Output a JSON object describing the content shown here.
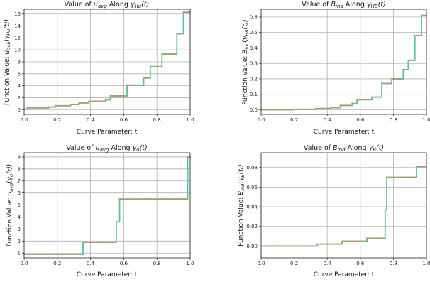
{
  "chart_data": [
    {
      "type": "line",
      "title": "Value of u_avg Along γ_Hu(t)",
      "title_parts": [
        "Value of ",
        "u",
        "avg",
        " Along ",
        "γ",
        "Hu",
        "(t)"
      ],
      "xlabel": "Curve Parameter: t",
      "ylabel_parts": [
        "Function Value: ",
        "u",
        "avg",
        "(",
        "γ",
        "Hu",
        "(t))"
      ],
      "xlim": [
        0,
        1
      ],
      "ylim": [
        -0.8,
        16.8
      ],
      "xticks": [
        0.0,
        0.2,
        0.4,
        0.6,
        0.8,
        1.0
      ],
      "xtick_labels": [
        "0.0",
        "0.2",
        "0.4",
        "0.6",
        "0.8",
        "1.0"
      ],
      "yticks": [
        0,
        2,
        4,
        6,
        8,
        10,
        12,
        14,
        16
      ],
      "ytick_labels": [
        "0",
        "2",
        "4",
        "6",
        "8",
        "10",
        "12",
        "14",
        "16"
      ],
      "grid": true,
      "line_color": "#4fc4a0",
      "marker_color": "#d98a5e",
      "steps": [
        [
          0.0,
          0.1
        ],
        [
          0.02,
          0.3
        ],
        [
          0.15,
          0.45
        ],
        [
          0.19,
          0.65
        ],
        [
          0.28,
          0.85
        ],
        [
          0.33,
          1.1
        ],
        [
          0.39,
          1.4
        ],
        [
          0.49,
          1.65
        ],
        [
          0.52,
          2.3
        ],
        [
          0.62,
          4.1
        ],
        [
          0.72,
          5.3
        ],
        [
          0.76,
          7.2
        ],
        [
          0.83,
          9.3
        ],
        [
          0.92,
          12.7
        ],
        [
          0.96,
          16.3
        ],
        [
          1.0,
          16.3
        ]
      ]
    },
    {
      "type": "line",
      "title": "Value of B_ind Along γ_HB(t)",
      "title_parts": [
        "Value of ",
        "B",
        "ind",
        " Along ",
        "γ",
        "HB",
        "(t)"
      ],
      "xlabel": "Curve Parameter: t",
      "ylabel_parts": [
        "Function Value: ",
        "B",
        "ind",
        "(",
        "γ",
        "HB",
        "(t))"
      ],
      "xlim": [
        0,
        1
      ],
      "ylim": [
        -0.03,
        0.65
      ],
      "xticks": [
        0.0,
        0.2,
        0.4,
        0.6,
        0.8,
        1.0
      ],
      "xtick_labels": [
        "0.0",
        "0.2",
        "0.4",
        "0.6",
        "0.8",
        "1.0"
      ],
      "yticks": [
        0.0,
        0.1,
        0.2,
        0.3,
        0.4,
        0.5,
        0.6
      ],
      "ytick_labels": [
        "0.0",
        "0.1",
        "0.2",
        "0.3",
        "0.4",
        "0.5",
        "0.6"
      ],
      "grid": true,
      "line_color": "#4fc4a0",
      "marker_color": "#d98a5e",
      "steps": [
        [
          0.0,
          0.0
        ],
        [
          0.2,
          0.003
        ],
        [
          0.33,
          0.008
        ],
        [
          0.42,
          0.014
        ],
        [
          0.48,
          0.028
        ],
        [
          0.55,
          0.04
        ],
        [
          0.58,
          0.065
        ],
        [
          0.67,
          0.082
        ],
        [
          0.73,
          0.17
        ],
        [
          0.79,
          0.2
        ],
        [
          0.86,
          0.26
        ],
        [
          0.89,
          0.32
        ],
        [
          0.93,
          0.48
        ],
        [
          0.97,
          0.61
        ],
        [
          1.0,
          0.61
        ]
      ]
    },
    {
      "type": "line",
      "title": "Value of u_avg Along γ_u(t)",
      "title_parts": [
        "Value of ",
        "u",
        "avg",
        " Along ",
        "γ",
        "u",
        "(t)"
      ],
      "xlabel": "Curve Parameter: t",
      "ylabel_parts": [
        "Function Value: ",
        "u",
        "avg",
        "(",
        "γ",
        "u",
        "(t))"
      ],
      "xlim": [
        0,
        1
      ],
      "ylim": [
        0.6,
        9.35
      ],
      "xticks": [
        0.0,
        0.2,
        0.4,
        0.6,
        0.8,
        1.0
      ],
      "xtick_labels": [
        "0.0",
        "0.2",
        "0.4",
        "0.6",
        "0.8",
        "1.0"
      ],
      "yticks": [
        1,
        2,
        3,
        4,
        5,
        6,
        7,
        8,
        9
      ],
      "ytick_labels": [
        "1",
        "2",
        "3",
        "4",
        "5",
        "6",
        "7",
        "8",
        "9"
      ],
      "grid": true,
      "line_color": "#4fc4a0",
      "marker_color": "#d98a5e",
      "steps": [
        [
          0.0,
          0.9
        ],
        [
          0.355,
          1.9
        ],
        [
          0.555,
          3.6
        ],
        [
          0.575,
          5.5
        ],
        [
          0.985,
          9.0
        ],
        [
          1.0,
          9.0
        ]
      ]
    },
    {
      "type": "line",
      "title": "Value of B_ind Along γ_B(t)",
      "title_parts": [
        "Value of ",
        "B",
        "ind",
        " Along ",
        "γ",
        "B",
        "(t)"
      ],
      "xlabel": "Curve Parameter: t",
      "ylabel_parts": [
        "Function Value: ",
        "B",
        "ind",
        "(",
        "γ",
        "B",
        "(t))"
      ],
      "xlim": [
        0,
        1
      ],
      "ylim": [
        -0.012,
        0.095
      ],
      "xticks": [
        0.0,
        0.2,
        0.4,
        0.6,
        0.8,
        1.0
      ],
      "xtick_labels": [
        "0.0",
        "0.2",
        "0.4",
        "0.6",
        "0.8",
        "1.0"
      ],
      "yticks": [
        0.0,
        0.02,
        0.04,
        0.06,
        0.08
      ],
      "ytick_labels": [
        "0.00",
        "0.02",
        "0.04",
        "0.06",
        "0.08"
      ],
      "grid": true,
      "line_color": "#4fc4a0",
      "marker_color": "#d98a5e",
      "steps": [
        [
          0.0,
          0.0
        ],
        [
          0.34,
          0.002
        ],
        [
          0.49,
          0.005
        ],
        [
          0.64,
          0.008
        ],
        [
          0.75,
          0.037
        ],
        [
          0.76,
          0.07
        ],
        [
          0.94,
          0.081
        ],
        [
          1.0,
          0.081
        ]
      ]
    }
  ]
}
